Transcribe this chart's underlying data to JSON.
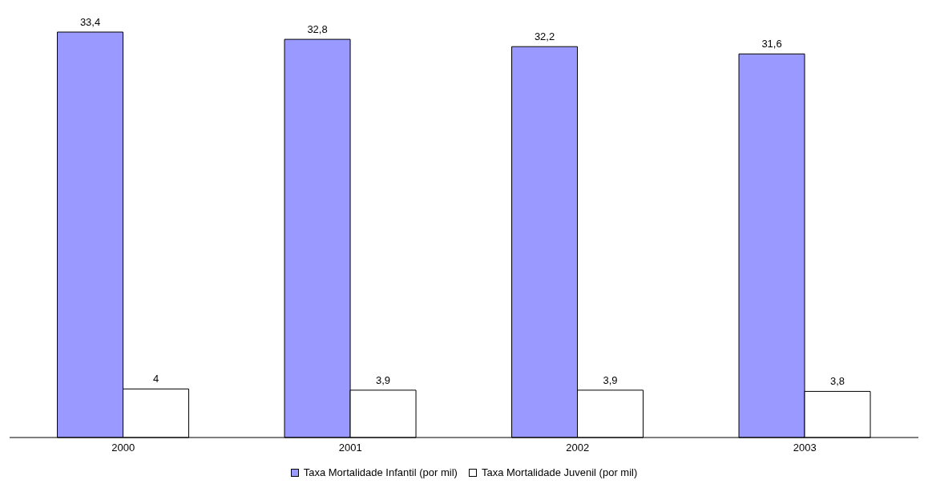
{
  "chart_data": {
    "type": "bar",
    "categories": [
      "2000",
      "2001",
      "2002",
      "2003"
    ],
    "series": [
      {
        "name": "Taxa Mortalidade Infantil (por mil)",
        "color": "#9999ff",
        "values": [
          33.4,
          32.8,
          32.2,
          31.6
        ],
        "value_labels": [
          "33,4",
          "32,8",
          "32,2",
          "31,6"
        ]
      },
      {
        "name": "Taxa Mortalidade Juvenil (por mil)",
        "color": "#ffffff",
        "values": [
          4,
          3.9,
          3.9,
          3.8
        ],
        "value_labels": [
          "4",
          "3,9",
          "3,9",
          "3,8"
        ]
      }
    ],
    "grid": false,
    "legend": "bottom"
  }
}
